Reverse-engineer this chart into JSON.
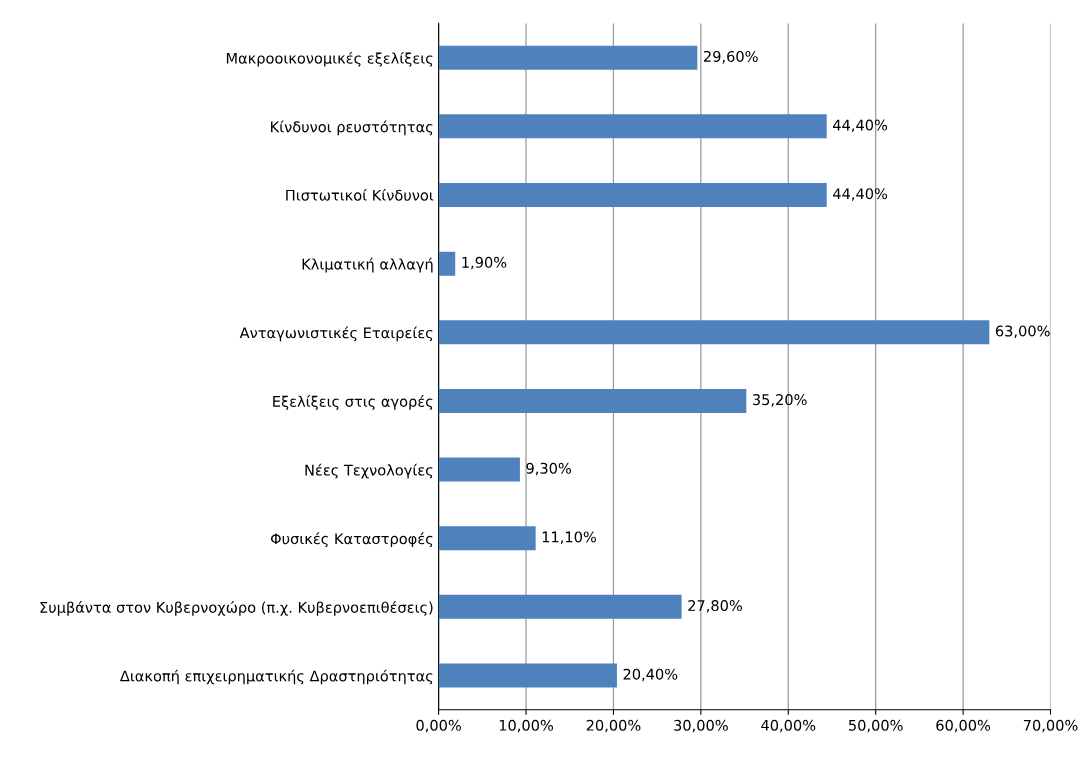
{
  "chart_data": {
    "type": "bar",
    "orientation": "horizontal",
    "categories": [
      "Μακροοικονομικές εξελίξεις",
      "Κίνδυνοι ρευστότητας",
      "Πιστωτικοί Κίνδυνοι",
      "Κλιματική αλλαγή",
      "Ανταγωνιστικές Εταιρείες",
      "Εξελίξεις στις αγορές",
      "Νέες Τεχνολογίες",
      "Φυσικές Καταστροφές",
      "Συμβάντα στον Κυβερνοχώρο (π.χ. Κυβερνοεπιθέσεις)",
      "Διακοπή επιχειρηματικής Δραστηριότητας"
    ],
    "values": [
      29.6,
      44.4,
      44.4,
      1.9,
      63.0,
      35.2,
      9.3,
      11.1,
      27.8,
      20.4
    ],
    "value_labels": [
      "29,60%",
      "44,40%",
      "44,40%",
      "1,90%",
      "63,00%",
      "35,20%",
      "9,30%",
      "11,10%",
      "27,80%",
      "20,40%"
    ],
    "color": "#4f81bd",
    "xlim": [
      0,
      70
    ],
    "xticks": [
      {
        "value": 0,
        "label": "0,00%"
      },
      {
        "value": 10,
        "label": "10,00%"
      },
      {
        "value": 20,
        "label": "20,00%"
      },
      {
        "value": 30,
        "label": "30,00%"
      },
      {
        "value": 40,
        "label": "40,00%"
      },
      {
        "value": 50,
        "label": "50,00%"
      },
      {
        "value": 60,
        "label": "60,00%"
      },
      {
        "value": 70,
        "label": "70,00%"
      }
    ],
    "grid": "x",
    "legend": false
  }
}
